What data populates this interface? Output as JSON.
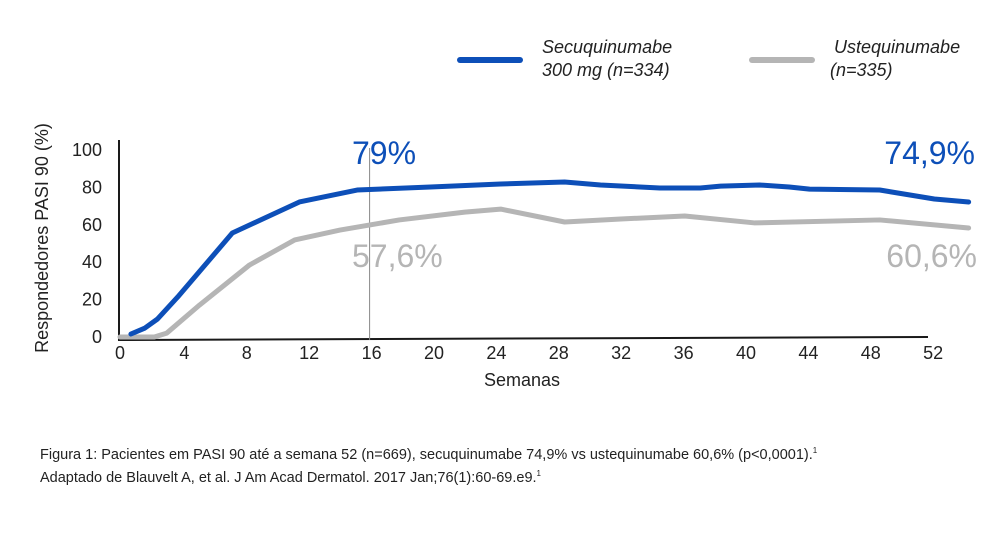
{
  "chart_data": {
    "type": "line",
    "xlabel": "Semanas",
    "ylabel": "Respondedores PASI 90 (%)",
    "xticks": [
      0,
      4,
      8,
      12,
      16,
      20,
      24,
      28,
      32,
      36,
      40,
      44,
      48,
      52
    ],
    "yticks": [
      0,
      20,
      40,
      60,
      80,
      100
    ],
    "xlim": [
      0,
      55
    ],
    "ylim": [
      0,
      100
    ],
    "grid": false,
    "legend_position": "top-right",
    "reference_line_week": 16,
    "series": [
      {
        "name": "Secuquinumabe 300 mg (n=334)",
        "color": "#0d4fb8",
        "x": [
          0.7,
          1.6,
          2.4,
          3.7,
          7.2,
          11.5,
          15.2,
          19.9,
          24.4,
          28.5,
          30.8,
          34.6,
          37.2,
          38.5,
          41,
          42.9,
          44.2,
          48.7,
          52.2,
          54.4
        ],
        "y": [
          1.6,
          4.8,
          9.6,
          21.4,
          55.6,
          72.2,
          78.6,
          80.2,
          81.8,
          82.9,
          81.3,
          79.7,
          79.7,
          80.7,
          81.3,
          80.2,
          79.1,
          78.6,
          73.8,
          72.2
        ]
      },
      {
        "name": "Ustequinumabe (n=335)",
        "color": "#b5b5b5",
        "x": [
          0,
          2.2,
          3.0,
          5.1,
          8.3,
          11.2,
          14.1,
          17.9,
          22.1,
          24.4,
          28.5,
          32.1,
          36.2,
          40.7,
          48.7,
          54.4
        ],
        "y": [
          0,
          0,
          2.1,
          17.1,
          38.5,
          51.9,
          57.2,
          62.6,
          66.8,
          68.4,
          61.5,
          63.1,
          64.7,
          61.0,
          62.6,
          58.3
        ]
      }
    ],
    "annotations": {
      "secu_week16": "79%",
      "uste_week16": "57,6%",
      "secu_week52": "74,9%",
      "uste_week52": "60,6%"
    }
  },
  "legend": {
    "secu_line1": "Secuquinumabe",
    "secu_line2": "300 mg (n=334)",
    "uste_line1": "Ustequinumabe",
    "uste_line2": "(n=335)"
  },
  "caption": {
    "line1": "Figura 1: Pacientes em PASI 90 até a semana 52 (n=669), secuquinumabe 74,9% vs ustequinumabe 60,6% (p<0,0001).",
    "line2": "Adaptado de Blauvelt A, et al. J Am Acad Dermatol. 2017 Jan;76(1):60-69.e9.",
    "ref": "1"
  }
}
